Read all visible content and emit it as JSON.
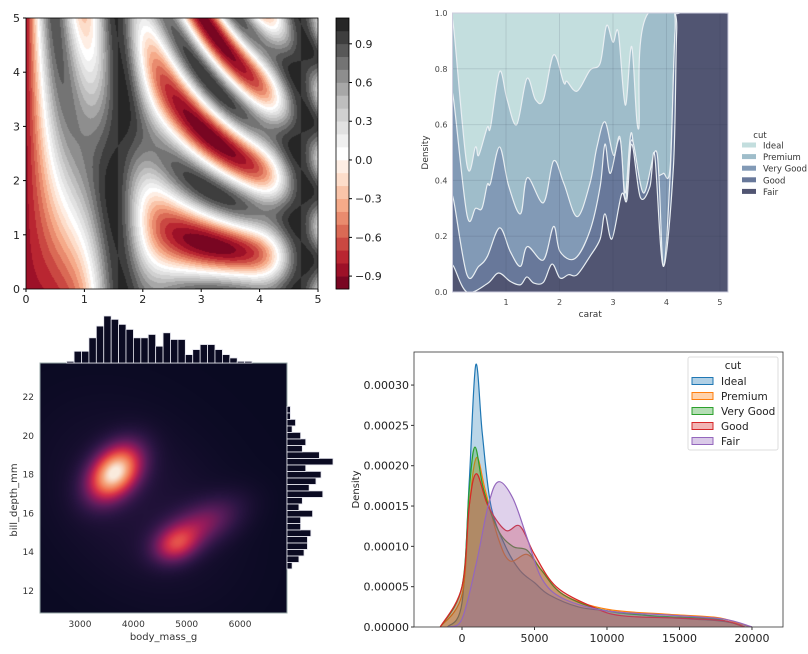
{
  "chart_data": [
    {
      "type": "contour",
      "colormap": "RdGy",
      "xlim": [
        0,
        5
      ],
      "ylim": [
        0,
        5
      ],
      "xticks": [
        "0",
        "1",
        "2",
        "3",
        "4",
        "5"
      ],
      "yticks": [
        "0",
        "1",
        "2",
        "3",
        "4",
        "5"
      ],
      "level_range": [
        -1.0,
        1.1
      ],
      "level_step": 0.1,
      "colorbar": {
        "ticks": [
          {
            "value": 0.9,
            "label": "0.9"
          },
          {
            "value": 0.6,
            "label": "0.6"
          },
          {
            "value": 0.3,
            "label": "0.3"
          },
          {
            "value": 0.0,
            "label": "0.0"
          },
          {
            "value": -0.3,
            "label": "−0.3"
          },
          {
            "value": -0.6,
            "label": "−0.6"
          },
          {
            "value": -0.9,
            "label": "−0.9"
          }
        ]
      }
    },
    {
      "type": "area",
      "stacking": "fill",
      "xlabel": "carat",
      "ylabel": "Density",
      "xlim": [
        0,
        5.15
      ],
      "ylim": [
        0,
        1
      ],
      "xticks": [
        1,
        2,
        3,
        4,
        5
      ],
      "yticks": [
        "0.0",
        "0.2",
        "0.4",
        "0.6",
        "0.8",
        "1.0"
      ],
      "grid": true,
      "legend": {
        "title": "cut",
        "position": "right"
      },
      "series": [
        {
          "name": "Ideal",
          "color": "#c3dede",
          "upper_boundary": [
            [
              0,
              1
            ],
            [
              5.15,
              1
            ]
          ]
        },
        {
          "name": "Premium",
          "color": "#9fbdca",
          "upper_boundary": [
            [
              0.02,
              0.95
            ],
            [
              0.27,
              0.455
            ],
            [
              0.43,
              0.52
            ],
            [
              0.49,
              0.49
            ],
            [
              0.65,
              0.59
            ],
            [
              0.71,
              0.59
            ],
            [
              0.88,
              0.79
            ],
            [
              1.02,
              0.69
            ],
            [
              1.2,
              0.6
            ],
            [
              1.39,
              0.765
            ],
            [
              1.55,
              0.69
            ],
            [
              1.7,
              0.69
            ],
            [
              1.89,
              0.85
            ],
            [
              2.08,
              0.75
            ],
            [
              2.14,
              0.755
            ],
            [
              2.33,
              0.72
            ],
            [
              2.57,
              0.795
            ],
            [
              2.76,
              0.82
            ],
            [
              2.88,
              0.955
            ],
            [
              3.0,
              0.895
            ],
            [
              3.1,
              0.93
            ],
            [
              3.23,
              0.67
            ],
            [
              3.35,
              0.88
            ],
            [
              3.48,
              0.585
            ],
            [
              3.66,
              1.0
            ],
            [
              5.15,
              1.0
            ]
          ]
        },
        {
          "name": "Very Good",
          "color": "#829ab6",
          "upper_boundary": [
            [
              0.02,
              0.69
            ],
            [
              0.27,
              0.277
            ],
            [
              0.43,
              0.3
            ],
            [
              0.55,
              0.3
            ],
            [
              0.65,
              0.385
            ],
            [
              0.71,
              0.39
            ],
            [
              0.88,
              0.52
            ],
            [
              1.05,
              0.38
            ],
            [
              1.27,
              0.28
            ],
            [
              1.4,
              0.41
            ],
            [
              1.7,
              0.32
            ],
            [
              1.89,
              0.47
            ],
            [
              2.08,
              0.39
            ],
            [
              2.33,
              0.27
            ],
            [
              2.57,
              0.39
            ],
            [
              2.7,
              0.52
            ],
            [
              2.85,
              0.61
            ],
            [
              3.01,
              0.49
            ],
            [
              3.13,
              0.555
            ],
            [
              3.23,
              0.355
            ],
            [
              3.35,
              0.57
            ],
            [
              3.51,
              0.235
            ],
            [
              3.66,
              0.355
            ],
            [
              3.82,
              0.41
            ],
            [
              3.94,
              0.425
            ],
            [
              4.07,
              0.45
            ],
            [
              4.16,
              0.93
            ],
            [
              4.25,
              1.0
            ],
            [
              5.15,
              1.0
            ]
          ]
        },
        {
          "name": "Good",
          "color": "#68789a",
          "upper_boundary": [
            [
              0.02,
              0.33
            ],
            [
              0.27,
              0.062
            ],
            [
              0.49,
              0.092
            ],
            [
              0.65,
              0.127
            ],
            [
              0.88,
              0.23
            ],
            [
              1.08,
              0.145
            ],
            [
              1.27,
              0.092
            ],
            [
              1.4,
              0.163
            ],
            [
              1.7,
              0.115
            ],
            [
              1.89,
              0.235
            ],
            [
              2.01,
              0.145
            ],
            [
              2.29,
              0.12
            ],
            [
              2.57,
              0.22
            ],
            [
              2.76,
              0.378
            ],
            [
              2.85,
              0.53
            ],
            [
              2.95,
              0.425
            ],
            [
              3.13,
              0.55
            ],
            [
              3.23,
              0.33
            ],
            [
              3.35,
              0.545
            ],
            [
              3.57,
              0.355
            ],
            [
              3.82,
              0.5
            ],
            [
              3.94,
              0.092
            ],
            [
              4.07,
              0.425
            ],
            [
              4.16,
              0.93
            ],
            [
              4.25,
              1.0
            ],
            [
              5.15,
              1.0
            ]
          ]
        },
        {
          "name": "Fair",
          "color": "#515572",
          "upper_boundary": [
            [
              0.02,
              0.092
            ],
            [
              0.27,
              0.0
            ],
            [
              0.65,
              0.03
            ],
            [
              0.86,
              0.068
            ],
            [
              1.08,
              0.038
            ],
            [
              1.27,
              0.026
            ],
            [
              1.39,
              0.054
            ],
            [
              1.52,
              0.032
            ],
            [
              1.7,
              0.035
            ],
            [
              1.86,
              0.1
            ],
            [
              2.01,
              0.05
            ],
            [
              2.17,
              0.062
            ],
            [
              2.33,
              0.062
            ],
            [
              2.57,
              0.128
            ],
            [
              2.76,
              0.19
            ],
            [
              2.85,
              0.28
            ],
            [
              2.98,
              0.19
            ],
            [
              3.16,
              0.35
            ],
            [
              3.26,
              0.33
            ],
            [
              3.35,
              0.53
            ],
            [
              3.51,
              0.34
            ],
            [
              3.69,
              0.378
            ],
            [
              3.78,
              0.49
            ],
            [
              3.94,
              0.092
            ],
            [
              4.13,
              0.45
            ],
            [
              4.19,
              0.93
            ],
            [
              4.25,
              1.0
            ],
            [
              5.15,
              1.0
            ]
          ]
        }
      ]
    },
    {
      "type": "heatmap",
      "kind": "bivariate kde with marginal histograms",
      "colormap": "rocket",
      "xlabel": "body_mass_g",
      "ylabel": "bill_depth_mm",
      "xlim": [
        2250,
        6880
      ],
      "ylim": [
        10.87,
        23.75
      ],
      "xticks": [
        3000,
        4000,
        5000,
        6000
      ],
      "yticks": [
        12,
        14,
        16,
        18,
        20,
        22
      ],
      "density_peaks": [
        {
          "body_mass_g": 3650,
          "bill_depth_mm": 18.1,
          "relative_density": 1.0
        },
        {
          "body_mass_g": 4800,
          "bill_depth_mm": 14.4,
          "relative_density": 0.45
        },
        {
          "body_mass_g": 5300,
          "bill_depth_mm": 15.5,
          "relative_density": 0.3
        }
      ],
      "marginal_x": {
        "bin_start": 2750,
        "bin_width": 139,
        "counts": [
          1,
          7,
          7,
          15,
          22,
          28,
          26,
          23,
          20,
          15,
          15,
          17,
          10,
          18,
          14,
          14,
          5,
          8,
          11,
          11,
          8,
          5,
          3,
          1,
          1
        ]
      },
      "marginal_y": {
        "bin_start": 13.14,
        "bin_width": 0.335,
        "counts": [
          3,
          7,
          10,
          12,
          12,
          14,
          8,
          8,
          15,
          7,
          9,
          21,
          13,
          17,
          20,
          11,
          27,
          19,
          9,
          11,
          8,
          3,
          5,
          2,
          2
        ]
      }
    },
    {
      "type": "line",
      "kind": "kde",
      "fill": true,
      "ylabel": "Density",
      "xlim": [
        -3310,
        22140
      ],
      "ylim": [
        0,
        0.000341
      ],
      "xticks": [
        0,
        5000,
        10000,
        15000,
        20000
      ],
      "yticks": [
        "0.00000",
        "0.00005",
        "0.00010",
        "0.00015",
        "0.00020",
        "0.00025",
        "0.00030"
      ],
      "legend": {
        "title": "cut",
        "position": "top-right"
      },
      "series": [
        {
          "name": "Ideal",
          "color": "#1f77b4",
          "points": [
            [
              -1000,
              0
            ],
            [
              0,
              3e-05
            ],
            [
              500,
              0.00018
            ],
            [
              950,
              0.000325
            ],
            [
              1400,
              0.00024
            ],
            [
              2000,
              0.00015
            ],
            [
              3000,
              0.0001
            ],
            [
              4000,
              7e-05
            ],
            [
              5000,
              5.5e-05
            ],
            [
              6000,
              4e-05
            ],
            [
              8000,
              2.5e-05
            ],
            [
              10000,
              2e-05
            ],
            [
              14000,
              1.2e-05
            ],
            [
              17500,
              8e-06
            ],
            [
              19000,
              4e-06
            ],
            [
              20000,
              0
            ]
          ]
        },
        {
          "name": "Premium",
          "color": "#ff7f0e",
          "points": [
            [
              -1500,
              0
            ],
            [
              0,
              4e-05
            ],
            [
              500,
              0.00015
            ],
            [
              1000,
              0.00021
            ],
            [
              1600,
              0.00017
            ],
            [
              2500,
              0.00011
            ],
            [
              3300,
              8.2e-05
            ],
            [
              4500,
              9e-05
            ],
            [
              5500,
              7e-05
            ],
            [
              7000,
              4e-05
            ],
            [
              10000,
              2.2e-05
            ],
            [
              14000,
              1.6e-05
            ],
            [
              17500,
              1.2e-05
            ],
            [
              19000,
              5e-06
            ],
            [
              20000,
              0
            ]
          ]
        },
        {
          "name": "Very Good",
          "color": "#2ca02c",
          "points": [
            [
              -1500,
              0
            ],
            [
              0,
              5e-05
            ],
            [
              500,
              0.00017
            ],
            [
              900,
              0.000223
            ],
            [
              1500,
              0.00017
            ],
            [
              2500,
              0.00012
            ],
            [
              3500,
              0.0001
            ],
            [
              4500,
              9.5e-05
            ],
            [
              5500,
              7e-05
            ],
            [
              7000,
              4e-05
            ],
            [
              10000,
              2e-05
            ],
            [
              14000,
              1.3e-05
            ],
            [
              17500,
              1e-05
            ],
            [
              19500,
              0
            ]
          ]
        },
        {
          "name": "Good",
          "color": "#d62728",
          "points": [
            [
              -1500,
              0
            ],
            [
              0,
              5e-05
            ],
            [
              500,
              0.00015
            ],
            [
              1000,
              0.00019
            ],
            [
              1800,
              0.00015
            ],
            [
              3000,
              0.00012
            ],
            [
              4000,
              0.000125
            ],
            [
              5000,
              9e-05
            ],
            [
              6500,
              5e-05
            ],
            [
              9000,
              2.5e-05
            ],
            [
              11000,
              1.4e-05
            ],
            [
              15000,
              1.1e-05
            ],
            [
              18000,
              8e-06
            ],
            [
              19500,
              0
            ]
          ]
        },
        {
          "name": "Fair",
          "color": "#9467bd",
          "points": [
            [
              -1000,
              0
            ],
            [
              0,
              1e-05
            ],
            [
              1000,
              8e-05
            ],
            [
              1800,
              0.00015
            ],
            [
              2500,
              0.00018
            ],
            [
              3500,
              0.00016
            ],
            [
              4500,
              0.00011
            ],
            [
              5500,
              6e-05
            ],
            [
              7000,
              3.5e-05
            ],
            [
              10000,
              2e-05
            ],
            [
              14000,
              1.5e-05
            ],
            [
              18000,
              1e-05
            ],
            [
              20000,
              0
            ]
          ]
        }
      ]
    }
  ]
}
